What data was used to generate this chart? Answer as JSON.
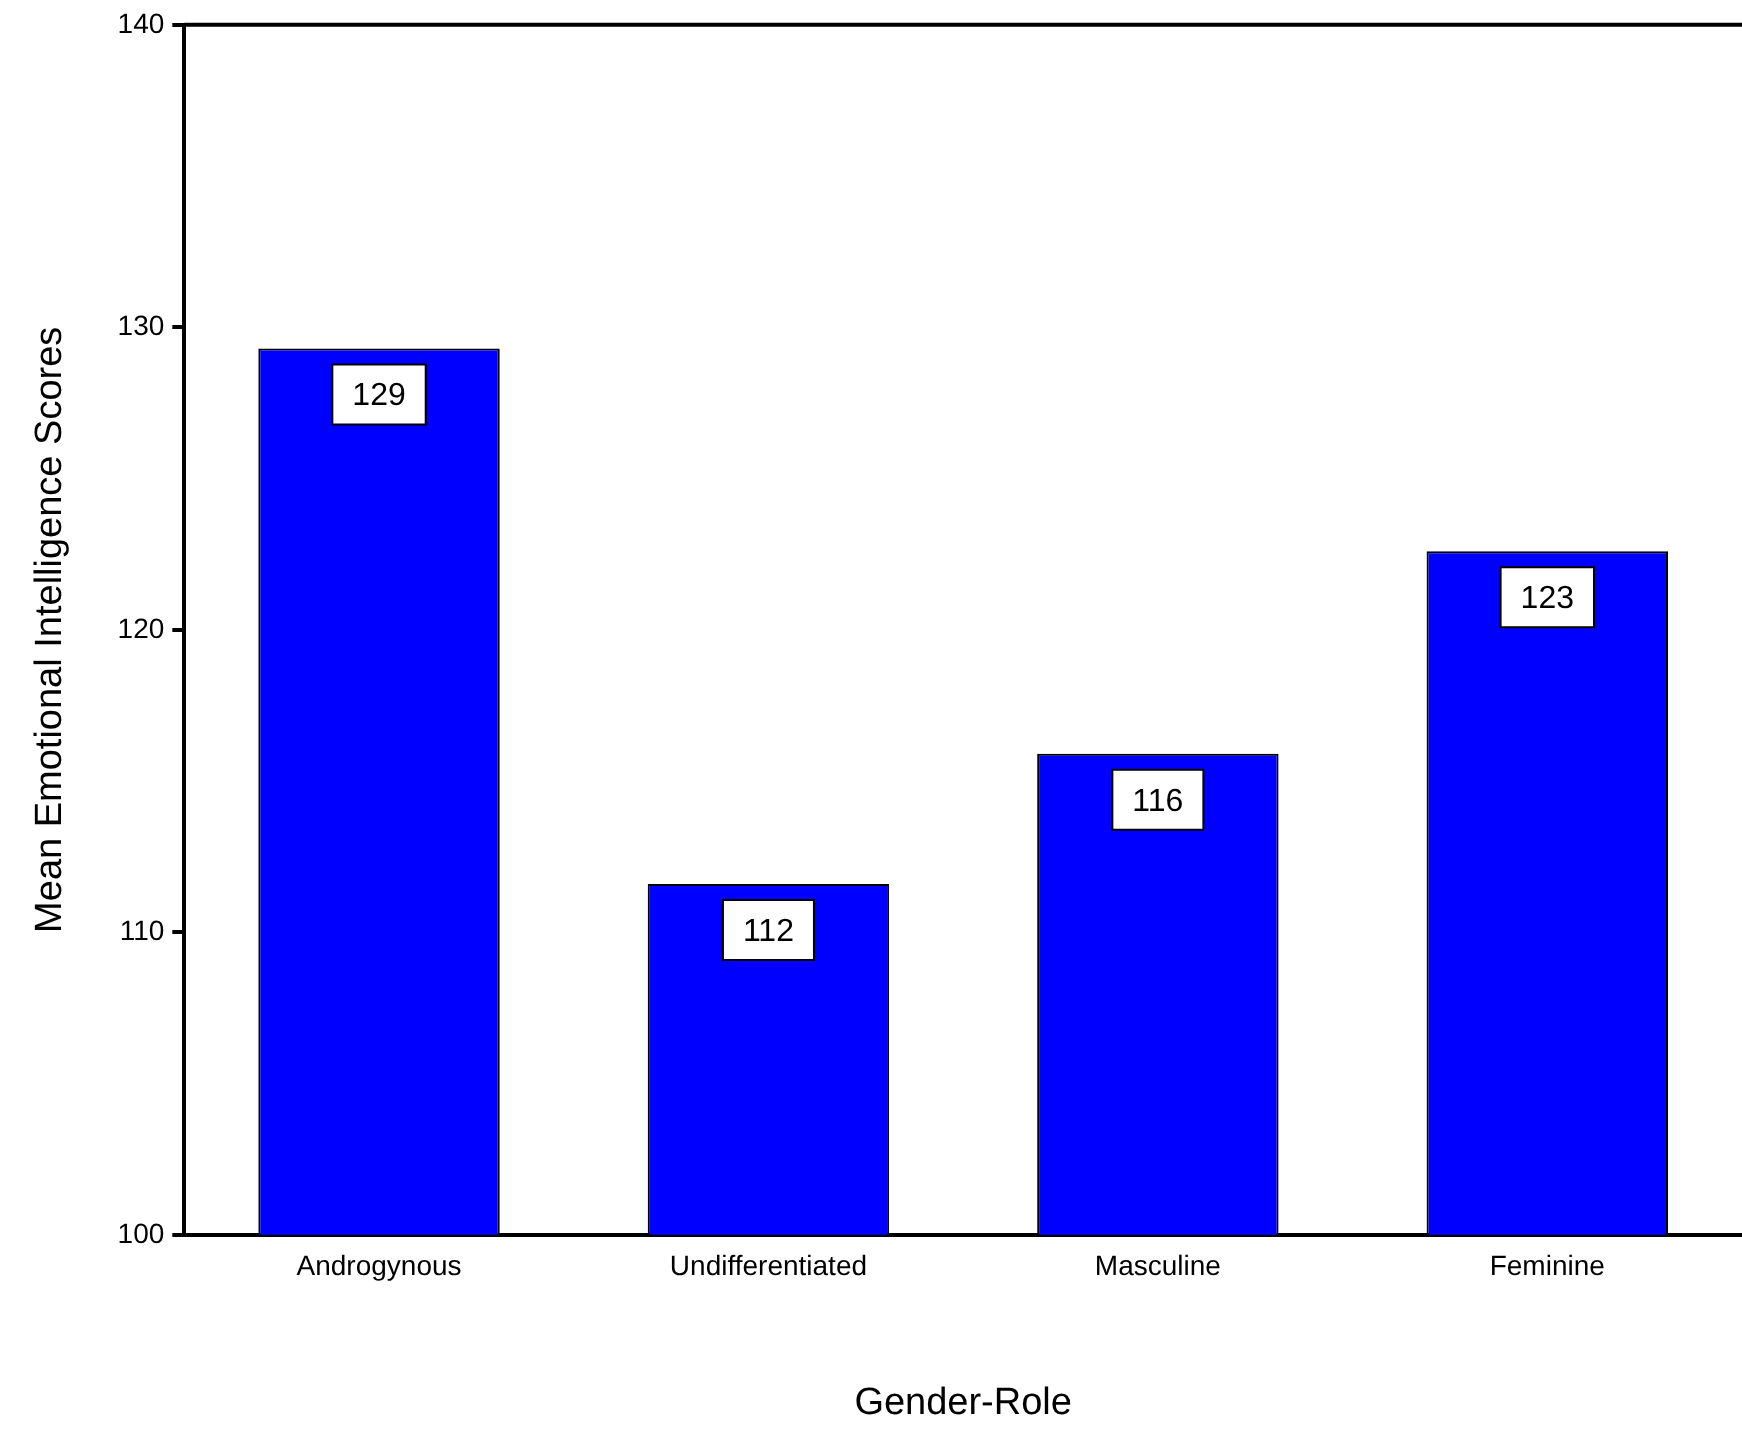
{
  "chart_data": {
    "type": "bar",
    "xlabel": "Gender-Role",
    "ylabel": "Mean Emotional Intelligence Scores",
    "categories": [
      "Androgynous",
      "Undifferentiated",
      "Masculine",
      "Feminine"
    ],
    "values": [
      129.3,
      111.6,
      115.9,
      122.6
    ],
    "value_labels": [
      "129",
      "112",
      "116",
      "123"
    ],
    "color": "#0000ff",
    "ylim": [
      100,
      140
    ],
    "yticks": [
      100,
      110,
      120,
      130,
      140
    ],
    "grid": false,
    "legend": false
  }
}
